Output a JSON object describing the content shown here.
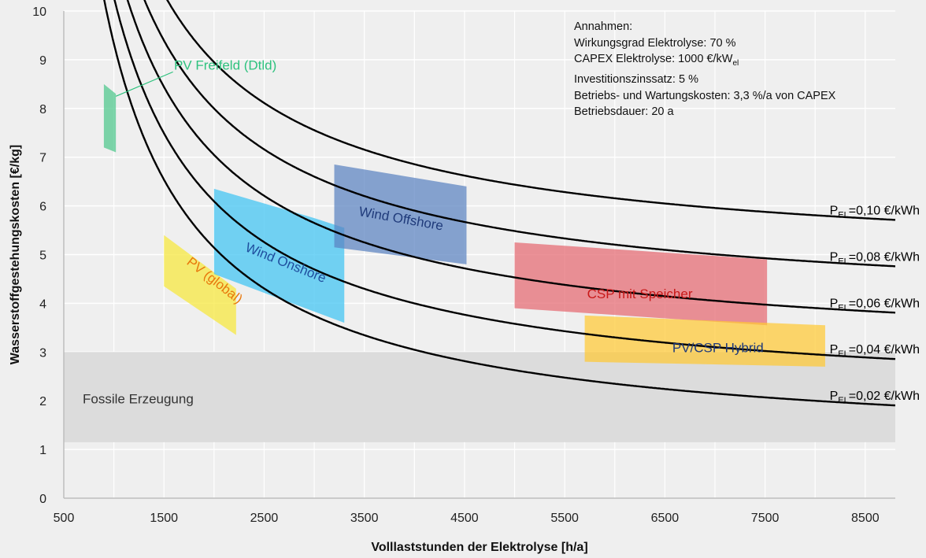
{
  "chart_data": {
    "type": "area",
    "xlabel": "Volllaststunden der Elektrolyse [h/a]",
    "ylabel": "Wasserstoffgestehungskosten  [€/kg]",
    "xlim": [
      500,
      8800
    ],
    "ylim": [
      0,
      10
    ],
    "x_ticks": [
      "500",
      "1500",
      "2500",
      "3500",
      "4500",
      "5500",
      "6500",
      "7500",
      "8500"
    ],
    "y_ticks": [
      "0",
      "1",
      "2",
      "3",
      "4",
      "5",
      "6",
      "7",
      "8",
      "9",
      "10"
    ],
    "grid": true,
    "curve_model": {
      "fixed_cost_coefficient": 8380,
      "electricity_factor": 47.6
    },
    "series": [
      {
        "label_prefix": "P",
        "label_sub": "EL",
        "label_rest": "=0,10 €/kWh",
        "price": 0.1
      },
      {
        "label_prefix": "P",
        "label_sub": "EL",
        "label_rest": "=0,08 €/kWh",
        "price": 0.08
      },
      {
        "label_prefix": "P",
        "label_sub": "EL",
        "label_rest": "=0,06 €/kWh",
        "price": 0.06
      },
      {
        "label_prefix": "P",
        "label_sub": "EL",
        "label_rest": "=0,04 €/kWh",
        "price": 0.04
      },
      {
        "label_prefix": "P",
        "label_sub": "EL",
        "label_rest": "=0,02 €/kWh",
        "price": 0.02
      }
    ],
    "regions": [
      {
        "name": "Fossile Erzeugung",
        "color": "#dadada",
        "text_color": "#333333",
        "polygon": [
          [
            500,
            3.0
          ],
          [
            8800,
            3.0
          ],
          [
            8800,
            1.15
          ],
          [
            500,
            1.15
          ]
        ]
      },
      {
        "name": "PV Freifeld (Dtld)",
        "color": "#4cc68a",
        "text_color": "#2ec27e",
        "polygon": [
          [
            900,
            8.5
          ],
          [
            1020,
            8.3
          ],
          [
            1020,
            7.1
          ],
          [
            900,
            7.2
          ]
        ]
      },
      {
        "name": "PV (global)",
        "color": "#f7e83a",
        "text_color": "#e8780c",
        "polygon": [
          [
            1500,
            5.4
          ],
          [
            2220,
            4.3
          ],
          [
            2220,
            3.35
          ],
          [
            1500,
            4.35
          ]
        ]
      },
      {
        "name": "Wind Onshore",
        "color": "#3fc4f2",
        "text_color": "#1f4e9e",
        "polygon": [
          [
            2000,
            6.35
          ],
          [
            3000,
            5.75
          ],
          [
            3300,
            5.55
          ],
          [
            3300,
            3.6
          ],
          [
            2000,
            4.6
          ]
        ]
      },
      {
        "name": "Wind Offshore",
        "color": "#5a82c0",
        "text_color": "#1f3a7a",
        "polygon": [
          [
            3200,
            6.85
          ],
          [
            4520,
            6.4
          ],
          [
            4520,
            4.8
          ],
          [
            3200,
            5.15
          ]
        ]
      },
      {
        "name": "CSP mit Speicher",
        "color": "#e56870",
        "text_color": "#c81818",
        "polygon": [
          [
            5000,
            5.25
          ],
          [
            7520,
            4.9
          ],
          [
            7520,
            3.55
          ],
          [
            5000,
            3.9
          ]
        ]
      },
      {
        "name": "PV/CSP Hybrid",
        "color": "#ffc935",
        "text_color": "#1f3a7a",
        "polygon": [
          [
            5700,
            3.75
          ],
          [
            8100,
            3.55
          ],
          [
            8100,
            2.7
          ],
          [
            5700,
            2.8
          ]
        ]
      }
    ]
  },
  "assumptions": {
    "title": "Annahmen:",
    "efficiency": "Wirkungsgrad Elektrolyse: 70 %",
    "capex_prefix": "CAPEX Elektrolyse: 1000 €/kW",
    "capex_sub": "el",
    "interest": "Investitionszinssatz: 5 %",
    "opex": "Betriebs- und Wartungskosten: 3,3 %/a von CAPEX",
    "lifetime": "Betriebsdauer: 20 a"
  }
}
